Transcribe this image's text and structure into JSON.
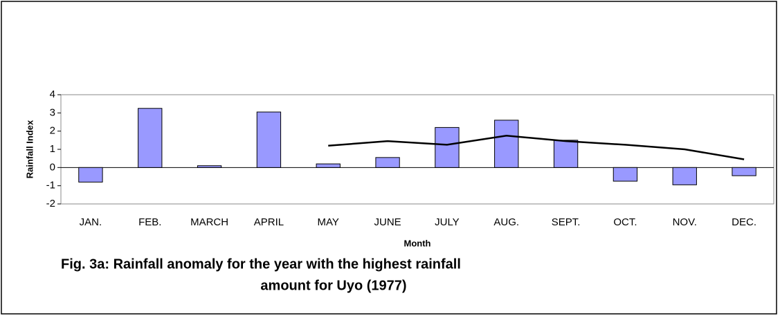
{
  "chart_data": {
    "type": "bar",
    "title": [
      "Fig. 3a: Rainfall anomaly for the year with the highest rainfall",
      "amount for Uyo (1977)"
    ],
    "x_label": "Month",
    "y_label": "Rainfall  Index",
    "categories": [
      "JAN.",
      "FEB.",
      "MARCH",
      "APRIL",
      "MAY",
      "JUNE",
      "JULY",
      "AUG.",
      "SEPT.",
      "OCT.",
      "NOV.",
      "DEC."
    ],
    "series": [
      {
        "type": "bar",
        "color": "#9999ff",
        "values": [
          -0.8,
          3.25,
          0.1,
          3.05,
          0.2,
          0.55,
          2.2,
          2.6,
          1.5,
          -0.75,
          -0.95,
          -0.45
        ]
      },
      {
        "type": "line",
        "color": "#000000",
        "values": [
          null,
          null,
          null,
          null,
          1.2,
          1.45,
          1.25,
          1.75,
          1.45,
          1.25,
          1.0,
          0.45
        ]
      }
    ],
    "ylim": [
      -2,
      4
    ],
    "yticks": [
      -2,
      -1,
      0,
      1,
      2,
      3,
      4
    ],
    "grid": false
  }
}
